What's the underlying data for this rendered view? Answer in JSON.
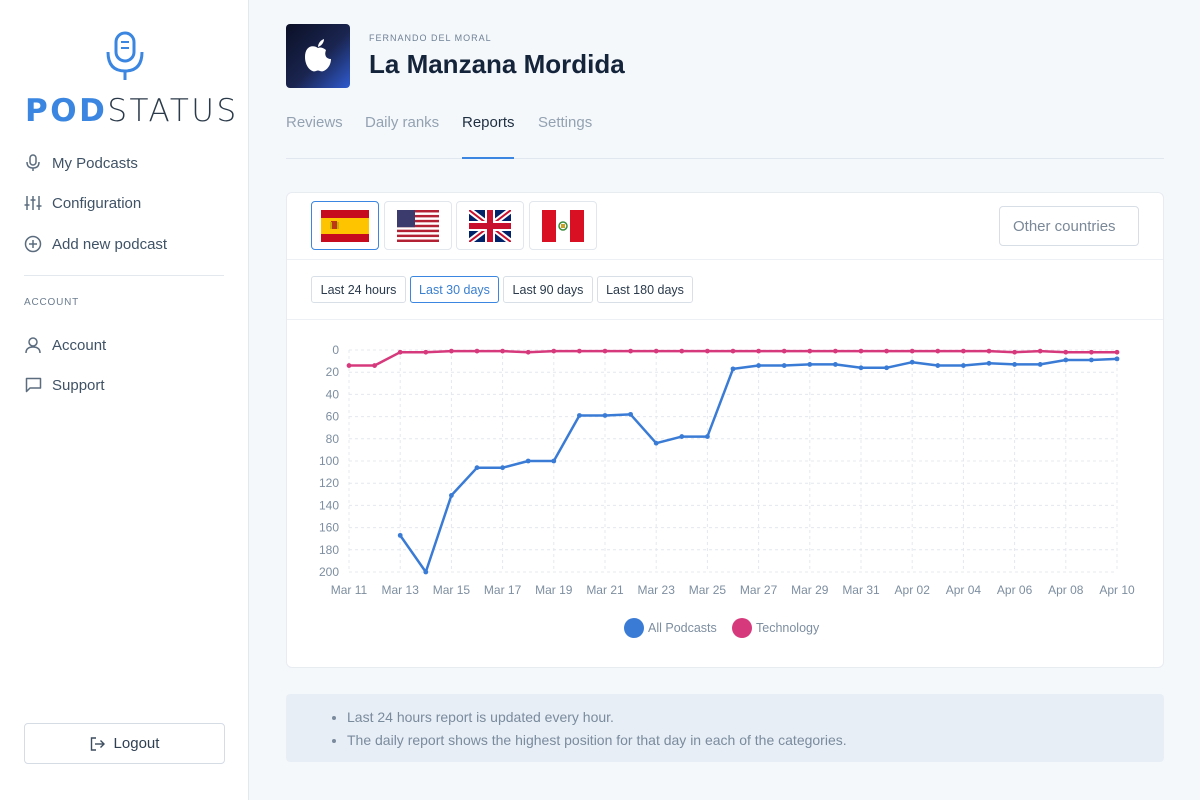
{
  "brand": {
    "prefix": "POD",
    "suffix": "STATUS",
    "accent": "#3a86e0"
  },
  "sidebar": {
    "items": [
      {
        "label": "My Podcasts",
        "icon": "microphone-icon"
      },
      {
        "label": "Configuration",
        "icon": "sliders-icon"
      },
      {
        "label": "Add new podcast",
        "icon": "plus-circle-icon"
      }
    ],
    "account_section": "ACCOUNT",
    "account_items": [
      {
        "label": "Account",
        "icon": "user-icon"
      },
      {
        "label": "Support",
        "icon": "chat-icon"
      }
    ],
    "logout_label": "Logout"
  },
  "podcast": {
    "author": "FERNANDO DEL MORAL",
    "title": "La Manzana Mordida"
  },
  "tabs": [
    {
      "label": "Reviews",
      "active": false
    },
    {
      "label": "Daily ranks",
      "active": false
    },
    {
      "label": "Reports",
      "active": true
    },
    {
      "label": "Settings",
      "active": false
    }
  ],
  "countries": [
    {
      "name": "Spain",
      "icon": "spain-flag",
      "active": true
    },
    {
      "name": "United States",
      "icon": "usa-flag",
      "active": false
    },
    {
      "name": "United Kingdom",
      "icon": "uk-flag",
      "active": false
    },
    {
      "name": "Peru",
      "icon": "peru-flag",
      "active": false
    }
  ],
  "other_countries_placeholder": "Other countries",
  "ranges": [
    {
      "label": "Last 24 hours",
      "active": false
    },
    {
      "label": "Last 30 days",
      "active": true
    },
    {
      "label": "Last 90 days",
      "active": false
    },
    {
      "label": "Last 180 days",
      "active": false
    }
  ],
  "chart_data": {
    "type": "line",
    "x": [
      "Mar 11",
      "Mar 12",
      "Mar 13",
      "Mar 14",
      "Mar 15",
      "Mar 16",
      "Mar 17",
      "Mar 18",
      "Mar 19",
      "Mar 20",
      "Mar 21",
      "Mar 22",
      "Mar 23",
      "Mar 24",
      "Mar 25",
      "Mar 26",
      "Mar 27",
      "Mar 28",
      "Mar 29",
      "Mar 30",
      "Mar 31",
      "Apr 01",
      "Apr 02",
      "Apr 03",
      "Apr 04",
      "Apr 05",
      "Apr 06",
      "Apr 07",
      "Apr 08",
      "Apr 09",
      "Apr 10"
    ],
    "x_tick_labels": [
      "Mar 11",
      "Mar 13",
      "Mar 15",
      "Mar 17",
      "Mar 19",
      "Mar 21",
      "Mar 23",
      "Mar 25",
      "Mar 27",
      "Mar 29",
      "Mar 31",
      "Apr 02",
      "Apr 04",
      "Apr 06",
      "Apr 08",
      "Apr 10"
    ],
    "y_ticks": [
      0,
      20,
      40,
      60,
      80,
      100,
      120,
      140,
      160,
      180,
      200
    ],
    "ylim": [
      0,
      200
    ],
    "y_reversed": true,
    "grid": true,
    "legend_position": "bottom",
    "series": [
      {
        "name": "All Podcasts",
        "color": "#3a7bd5",
        "values": [
          null,
          null,
          167,
          200,
          131,
          106,
          106,
          100,
          100,
          59,
          59,
          58,
          84,
          78,
          78,
          17,
          14,
          14,
          13,
          13,
          16,
          16,
          11,
          14,
          14,
          12,
          13,
          13,
          9,
          9,
          8
        ]
      },
      {
        "name": "Technology",
        "color": "#d63a7c",
        "values": [
          14,
          14,
          2,
          2,
          1,
          1,
          1,
          2,
          1,
          1,
          1,
          1,
          1,
          1,
          1,
          1,
          1,
          1,
          1,
          1,
          1,
          1,
          1,
          1,
          1,
          1,
          2,
          1,
          2,
          2,
          2
        ]
      }
    ]
  },
  "notes": [
    "Last 24 hours report is updated every hour.",
    "The daily report shows the highest position for that day in each of the categories."
  ]
}
